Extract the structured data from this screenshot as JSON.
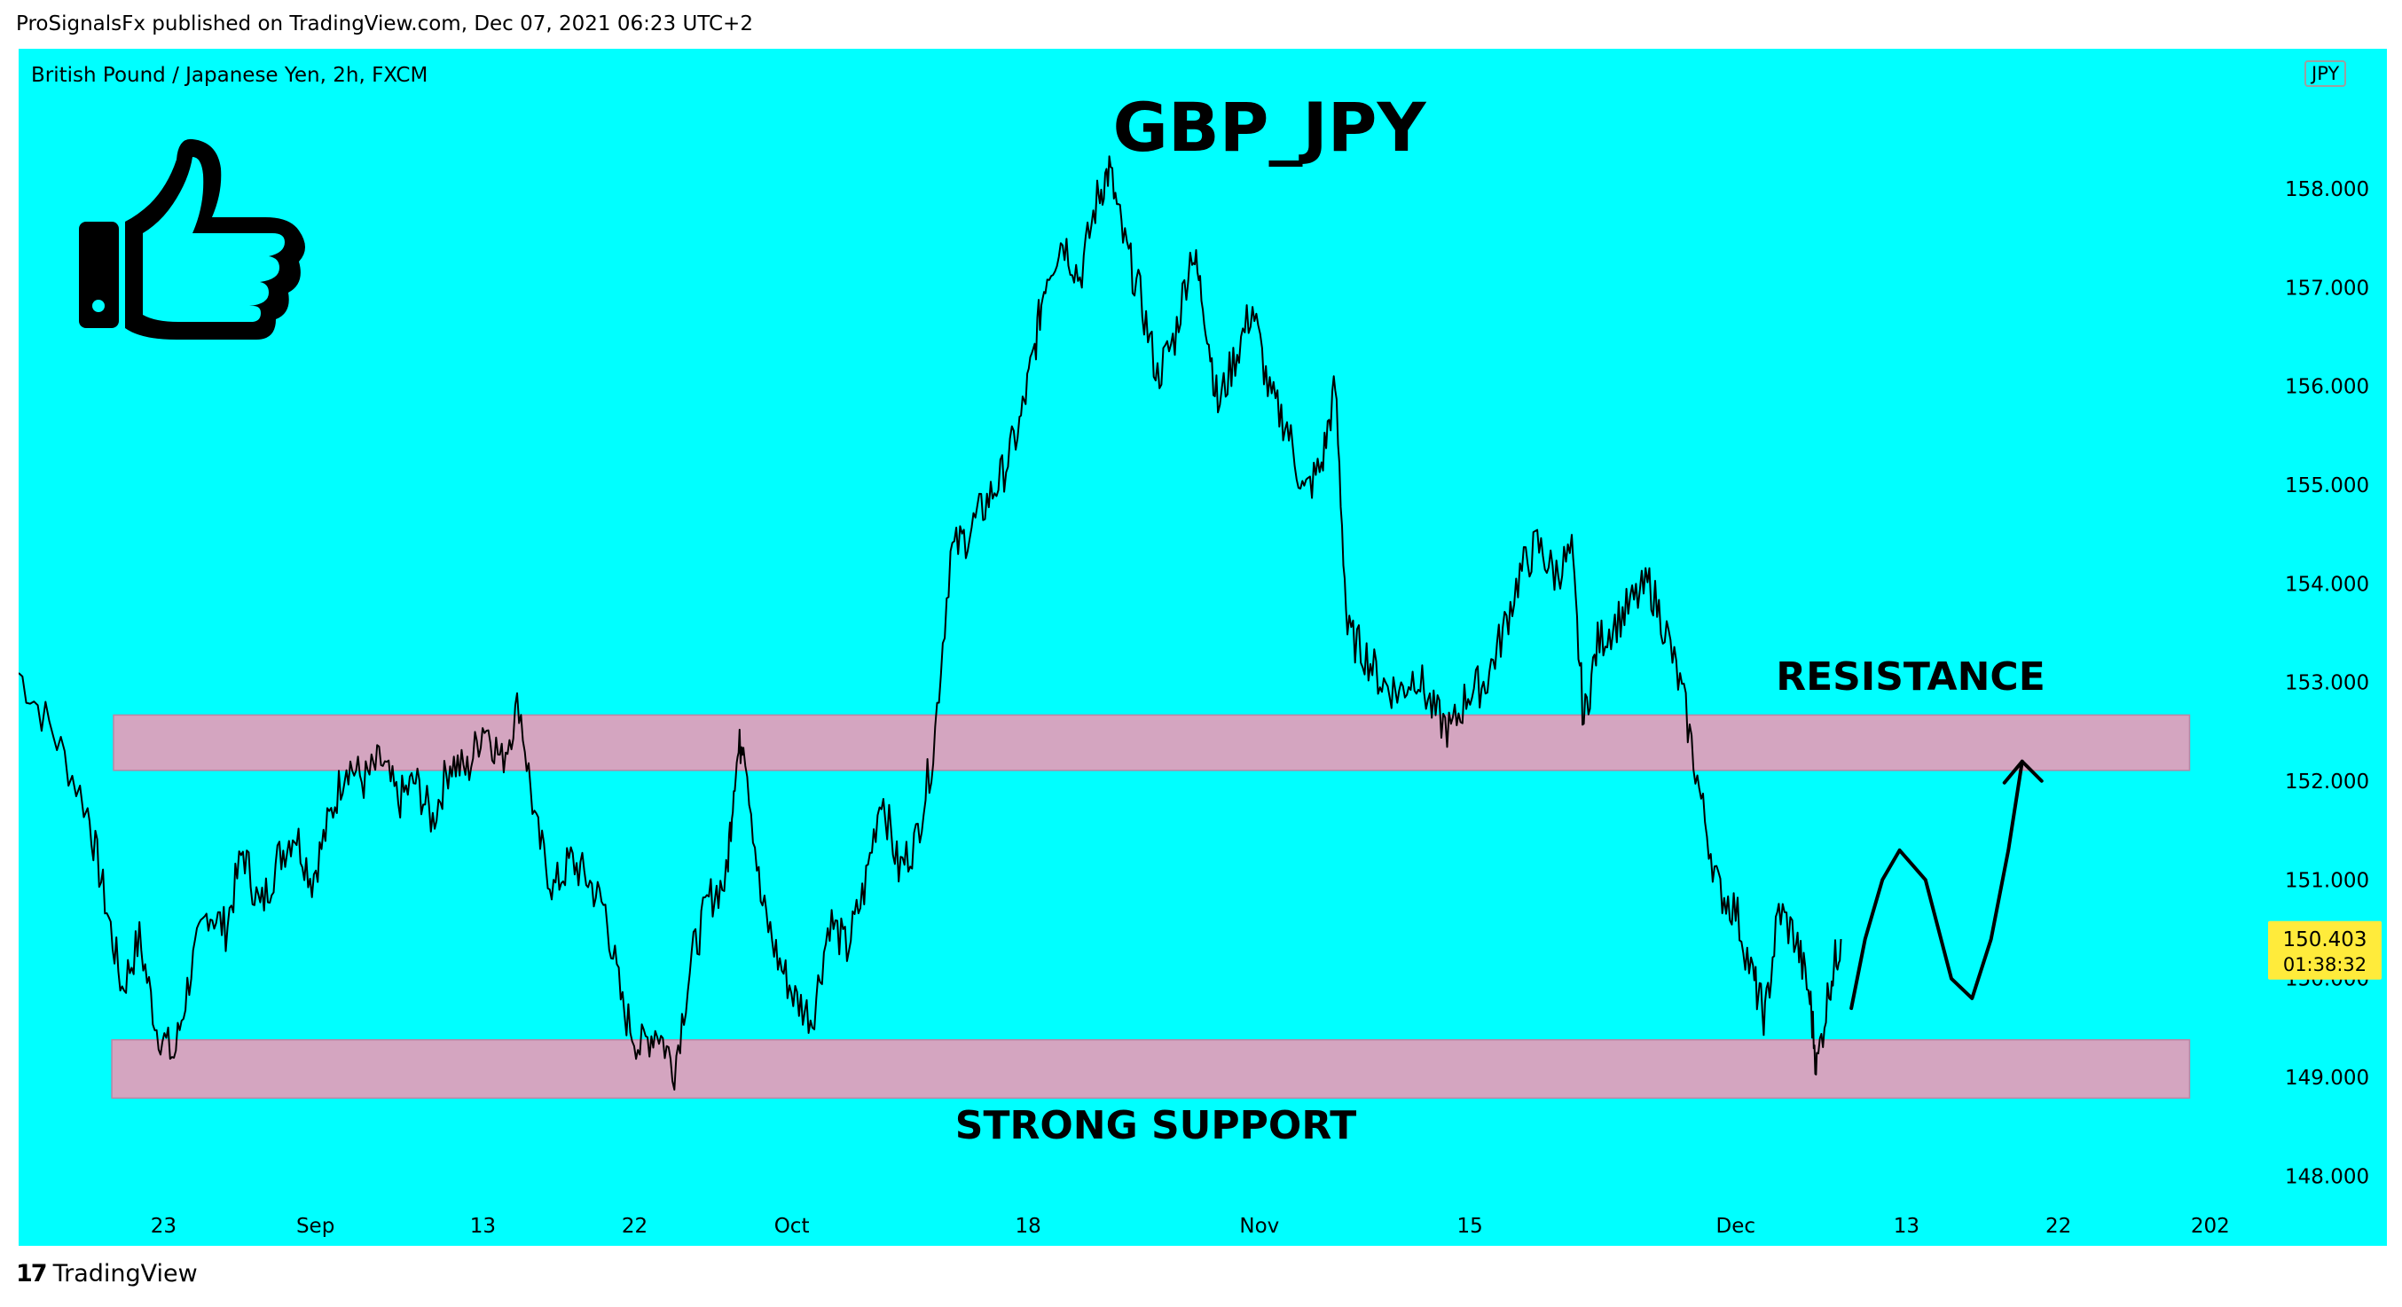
{
  "header": {
    "publisher_line": "ProSignalsFx published on TradingView.com, Dec 07, 2021 06:23 UTC+2"
  },
  "symbol": {
    "description": "British Pound / Japanese Yen, 2h, FXCM",
    "currency_badge": "JPY"
  },
  "colors": {
    "background": "#00ffff",
    "zone": "#d4a5c0",
    "zone_border": "#b986a4",
    "price_line": "#000000",
    "last_price_bg": "#ffeb3b"
  },
  "annotations": {
    "title": "GBP_JPY",
    "resistance_label": "RESISTANCE",
    "support_label": "STRONG SUPPORT",
    "thumbs_up": "thumbs-up-icon"
  },
  "footer": {
    "logo_text": "TradingView"
  },
  "chart_data": {
    "type": "line",
    "title": "GBP_JPY",
    "ylim": [
      147.6,
      159.1
    ],
    "y_ticks": [
      "158.000",
      "157.000",
      "156.000",
      "155.000",
      "154.000",
      "153.000",
      "152.000",
      "151.000",
      "150.000",
      "149.000",
      "148.000"
    ],
    "y_tick_values": [
      158,
      157,
      156,
      155,
      154,
      153,
      152,
      151,
      150,
      149,
      148
    ],
    "x_ticks": [
      "23",
      "Sep",
      "13",
      "22",
      "Oct",
      "18",
      "Nov",
      "15",
      "Dec",
      "13",
      "22",
      "202"
    ],
    "x_tick_values": [
      8.4,
      17.2,
      26.9,
      35.7,
      44.8,
      58.5,
      71.9,
      84.1,
      99.5,
      109.4,
      118.2,
      127.0
    ],
    "x_range": [
      0,
      128.5
    ],
    "grid": false,
    "series": [
      {
        "values": [
          [
            0,
            153.1
          ],
          [
            2,
            152.5
          ],
          [
            4,
            151.7
          ],
          [
            5,
            150.8
          ],
          [
            6,
            149.9
          ],
          [
            7,
            150.4
          ],
          [
            8,
            149.5
          ],
          [
            9,
            149.2
          ],
          [
            10,
            150.1
          ],
          [
            11,
            150.7
          ],
          [
            12,
            150.5
          ],
          [
            13,
            151.3
          ],
          [
            14,
            150.7
          ],
          [
            15,
            151.2
          ],
          [
            16,
            151.5
          ],
          [
            17,
            151.0
          ],
          [
            18,
            151.6
          ],
          [
            19,
            152.2
          ],
          [
            20,
            152.0
          ],
          [
            21,
            152.2
          ],
          [
            22,
            151.8
          ],
          [
            23,
            152.0
          ],
          [
            24,
            151.6
          ],
          [
            25,
            152.2
          ],
          [
            26,
            152.1
          ],
          [
            27,
            152.6
          ],
          [
            28,
            152.2
          ],
          [
            29,
            152.8
          ],
          [
            30,
            151.5
          ],
          [
            31,
            150.9
          ],
          [
            32,
            151.2
          ],
          [
            33,
            151.0
          ],
          [
            34,
            150.7
          ],
          [
            35,
            149.7
          ],
          [
            36,
            149.3
          ],
          [
            37,
            149.5
          ],
          [
            38,
            149.1
          ],
          [
            39,
            150.2
          ],
          [
            40,
            150.8
          ],
          [
            41,
            151.0
          ],
          [
            41.5,
            152.1
          ],
          [
            42,
            152.5
          ],
          [
            43,
            150.8
          ],
          [
            44,
            150.2
          ],
          [
            45,
            149.8
          ],
          [
            46,
            149.6
          ],
          [
            47,
            150.6
          ],
          [
            48,
            150.3
          ],
          [
            49,
            150.9
          ],
          [
            50,
            151.9
          ],
          [
            51,
            151.1
          ],
          [
            52,
            151.4
          ],
          [
            53,
            152.3
          ],
          [
            54,
            154.3
          ],
          [
            55,
            154.5
          ],
          [
            56,
            154.8
          ],
          [
            57,
            155.1
          ],
          [
            58,
            155.6
          ],
          [
            58.8,
            156.3
          ],
          [
            59.5,
            157.1
          ],
          [
            60.5,
            157.5
          ],
          [
            61.5,
            157.1
          ],
          [
            62.5,
            157.9
          ],
          [
            63.2,
            158.2
          ],
          [
            64,
            157.5
          ],
          [
            65,
            156.9
          ],
          [
            66,
            156.1
          ],
          [
            67,
            156.5
          ],
          [
            68,
            157.4
          ],
          [
            68.7,
            156.8
          ],
          [
            69.5,
            155.8
          ],
          [
            70.5,
            156.3
          ],
          [
            71.5,
            156.8
          ],
          [
            72.5,
            155.9
          ],
          [
            73.5,
            155.6
          ],
          [
            74.5,
            154.9
          ],
          [
            75.5,
            155.2
          ],
          [
            76.3,
            156.0
          ],
          [
            77,
            153.5
          ],
          [
            78,
            153.3
          ],
          [
            79,
            153.0
          ],
          [
            80,
            152.9
          ],
          [
            81,
            153.1
          ],
          [
            82,
            152.7
          ],
          [
            83,
            152.5
          ],
          [
            84,
            152.9
          ],
          [
            85,
            153.0
          ],
          [
            86,
            153.5
          ],
          [
            87,
            154.1
          ],
          [
            88,
            154.4
          ],
          [
            89,
            154.1
          ],
          [
            90,
            154.3
          ],
          [
            90.7,
            152.6
          ],
          [
            91.5,
            153.4
          ],
          [
            92.5,
            153.6
          ],
          [
            93.5,
            153.8
          ],
          [
            94.5,
            154.0
          ],
          [
            95.5,
            153.5
          ],
          [
            96.5,
            152.8
          ],
          [
            97.5,
            151.8
          ],
          [
            98.5,
            150.9
          ],
          [
            99.5,
            150.7
          ],
          [
            100.5,
            150.0
          ],
          [
            101.2,
            149.6
          ],
          [
            102,
            150.7
          ],
          [
            103,
            150.4
          ],
          [
            103.8,
            149.8
          ],
          [
            104.2,
            149.1
          ],
          [
            105,
            150.0
          ],
          [
            105.6,
            150.4
          ]
        ]
      }
    ],
    "zones": [
      {
        "name": "RESISTANCE",
        "from": 152.11,
        "to": 152.67,
        "x_start": 5.5,
        "x_end": 125.8
      },
      {
        "name": "STRONG SUPPORT",
        "from": 148.79,
        "to": 149.38,
        "x_start": 5.4,
        "x_end": 125.8
      }
    ],
    "projection": [
      [
        106.2,
        149.7
      ],
      [
        107,
        150.4
      ],
      [
        108,
        151.0
      ],
      [
        109,
        151.3
      ],
      [
        110.5,
        151.0
      ],
      [
        112,
        150.0
      ],
      [
        113.2,
        149.8
      ],
      [
        114.3,
        150.4
      ],
      [
        115.3,
        151.3
      ],
      [
        116.1,
        152.2
      ]
    ],
    "last_price": "150.403",
    "last_price_value": 150.403,
    "countdown": "01:38:32"
  }
}
